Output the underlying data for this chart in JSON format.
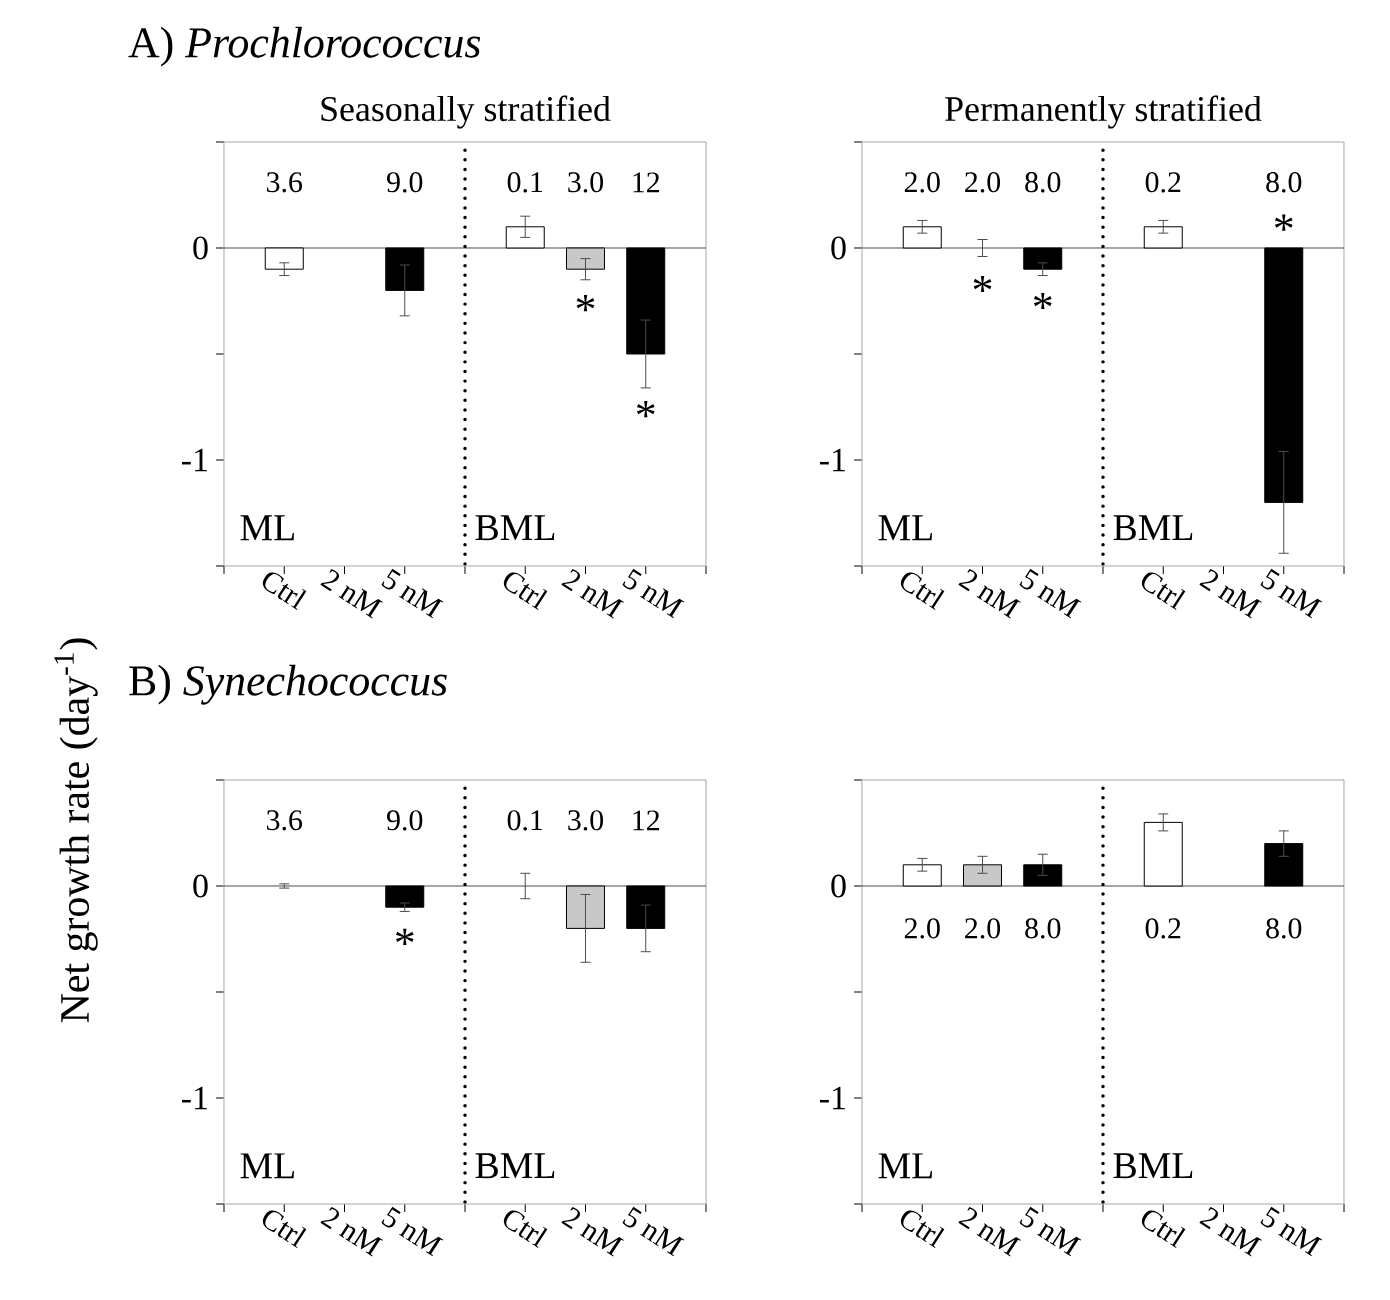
{
  "chart_data": [
    {
      "type": "bar",
      "title": "A) *Prochlorococcus*",
      "subtitle": "Seasonally stratified",
      "ylabel": "Net growth rate (day$^{-1}$)",
      "categories": [
        "Ctrl",
        "2 nM",
        "5 nM",
        null,
        "Ctrl",
        "2 nM",
        "5 nM"
      ],
      "values": [
        -0.1,
        null,
        -0.2,
        null,
        0.1,
        -0.1,
        -0.5
      ],
      "errors": [
        0.03,
        null,
        0.12,
        null,
        0.05,
        0.05,
        0.16
      ],
      "colors": [
        "#ffffff",
        "#c8c8c8",
        "#000000",
        "#ffffff",
        "#ffffff",
        "#c8c8c8",
        "#000000"
      ],
      "ylim": [
        -1.5,
        0.5
      ],
      "yticks": [
        {
          "value": 0.5,
          "label": null
        },
        0,
        {
          "value": -0.5,
          "label": null
        },
        -1,
        {
          "value": -1.5,
          "label": null
        }
      ],
      "annotations": [
        "ML",
        "BML",
        "3.6",
        "9.0",
        "0.1",
        "3.0",
        "12",
        "*",
        "*"
      ]
    },
    {
      "type": "bar",
      "subtitle": "Permanently stratified",
      "categories": [
        "Ctrl",
        "2 nM",
        "5 nM",
        null,
        "Ctrl",
        "2 nM",
        "5 nM"
      ],
      "values": [
        0.1,
        0.0,
        -0.1,
        null,
        0.1,
        null,
        -1.2
      ],
      "errors": [
        0.03,
        0.04,
        0.03,
        null,
        0.03,
        null,
        0.24
      ],
      "colors": [
        "#ffffff",
        "#c8c8c8",
        "#000000",
        "#ffffff",
        "#ffffff",
        "#c8c8c8",
        "#000000"
      ],
      "ylim": [
        -1.5,
        0.5
      ],
      "yticks": [
        {
          "value": 0.5,
          "label": null
        },
        0,
        {
          "value": -0.5,
          "label": null
        },
        -1,
        {
          "value": -1.5,
          "label": null
        }
      ],
      "annotations": [
        "ML",
        "BML",
        "2.0",
        "2.0",
        "8.0",
        "0.2",
        "8.0",
        "*",
        "*",
        "*"
      ]
    },
    {
      "type": "bar",
      "title": "B) *Synechococcus*",
      "categories": [
        "Ctrl",
        "2 nM",
        "5 nM",
        null,
        "Ctrl",
        "2 nM",
        "5 nM"
      ],
      "values": [
        0.0,
        null,
        -0.1,
        null,
        0.0,
        -0.2,
        -0.2
      ],
      "errors": [
        0.01,
        null,
        0.02,
        null,
        0.06,
        0.16,
        0.11
      ],
      "colors": [
        "#ffffff",
        "#c8c8c8",
        "#000000",
        "#ffffff",
        "#ffffff",
        "#c8c8c8",
        "#000000"
      ],
      "ylim": [
        -1.5,
        0.5
      ],
      "yticks": [
        {
          "value": 0.5,
          "label": null
        },
        0,
        {
          "value": -0.5,
          "label": null
        },
        -1,
        {
          "value": -1.5,
          "label": null
        }
      ],
      "annotations": [
        "ML",
        "BML",
        "3.6",
        "9.0",
        "0.1",
        "3.0",
        "12",
        "*"
      ]
    },
    {
      "type": "bar",
      "categories": [
        "Ctrl",
        "2 nM",
        "5 nM",
        null,
        "Ctrl",
        "2 nM",
        "5 nM"
      ],
      "values": [
        0.1,
        0.1,
        0.1,
        null,
        0.3,
        null,
        0.2
      ],
      "errors": [
        0.03,
        0.04,
        0.05,
        null,
        0.04,
        null,
        0.06
      ],
      "colors": [
        "#ffffff",
        "#c8c8c8",
        "#000000",
        "#ffffff",
        "#ffffff",
        "#c8c8c8",
        "#000000"
      ],
      "ylim": [
        -1.5,
        0.5
      ],
      "yticks": [
        {
          "value": 0.5,
          "label": null
        },
        0,
        {
          "value": -0.5,
          "label": null
        },
        -1,
        {
          "value": -1.5,
          "label": null
        }
      ],
      "annotations": [
        "ML",
        "BML",
        "2.0",
        "2.0",
        "8.0",
        "0.2",
        "8.0"
      ]
    }
  ]
}
